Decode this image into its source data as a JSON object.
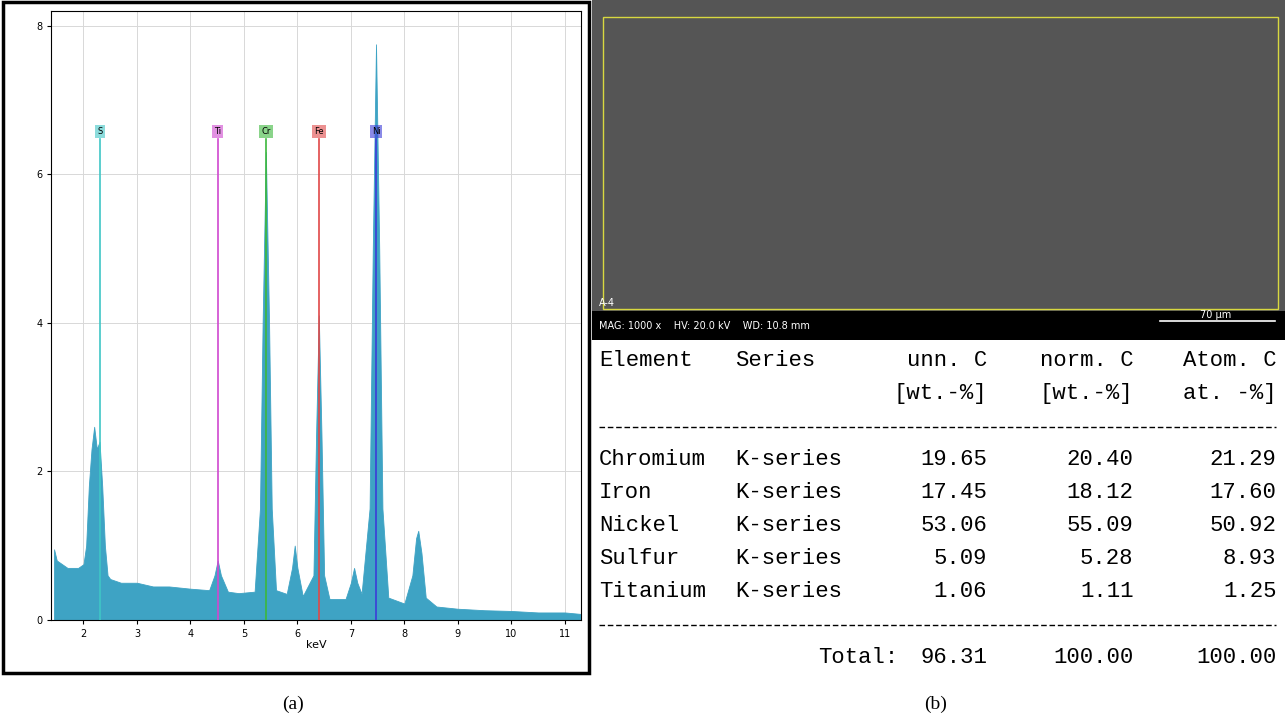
{
  "chart_data": {
    "type": "area",
    "x_label": "keV",
    "x": [
      1.45,
      1.5,
      1.6,
      1.7,
      1.8,
      1.9,
      2.0,
      2.05,
      2.1,
      2.15,
      2.2,
      2.25,
      2.3,
      2.35,
      2.4,
      2.45,
      2.5,
      2.7,
      3.0,
      3.3,
      3.6,
      4.0,
      4.35,
      4.45,
      4.51,
      4.57,
      4.7,
      4.9,
      5.2,
      5.3,
      5.35,
      5.41,
      5.47,
      5.52,
      5.6,
      5.8,
      5.9,
      5.95,
      6.0,
      6.1,
      6.3,
      6.35,
      6.4,
      6.45,
      6.5,
      6.6,
      6.9,
      7.0,
      7.06,
      7.12,
      7.2,
      7.35,
      7.41,
      7.47,
      7.53,
      7.59,
      7.7,
      8.0,
      8.15,
      8.22,
      8.26,
      8.32,
      8.4,
      8.6,
      9.0,
      9.5,
      10.0,
      10.5,
      11.0,
      11.3
    ],
    "values": [
      0.95,
      0.8,
      0.75,
      0.7,
      0.7,
      0.7,
      0.75,
      1.0,
      1.8,
      2.3,
      2.6,
      2.3,
      2.4,
      1.8,
      1.0,
      0.6,
      0.55,
      0.5,
      0.5,
      0.45,
      0.45,
      0.42,
      0.4,
      0.6,
      0.8,
      0.6,
      0.38,
      0.36,
      0.38,
      1.5,
      4.0,
      6.3,
      4.0,
      1.5,
      0.4,
      0.35,
      0.7,
      1.0,
      0.7,
      0.32,
      0.6,
      2.5,
      4.1,
      2.5,
      0.6,
      0.28,
      0.28,
      0.5,
      0.7,
      0.5,
      0.35,
      1.5,
      5.0,
      7.75,
      5.0,
      1.5,
      0.3,
      0.22,
      0.6,
      1.1,
      1.2,
      0.9,
      0.3,
      0.18,
      0.15,
      0.13,
      0.12,
      0.1,
      0.1,
      0.08
    ],
    "color": "#3ea3c4",
    "xlim": [
      1.4,
      11.3
    ],
    "xticks": [
      2,
      3,
      4,
      5,
      6,
      7,
      8,
      9,
      10,
      11
    ],
    "ylim": [
      0,
      8.2
    ],
    "yticks": [
      0,
      2,
      4,
      6,
      8
    ],
    "grid": true,
    "annotations": [
      {
        "label": "S",
        "x": 2.31,
        "color": "#3fc6c6"
      },
      {
        "label": "Ti",
        "x": 4.51,
        "color": "#d048d0"
      },
      {
        "label": "Cr",
        "x": 5.41,
        "color": "#3cb83c"
      },
      {
        "label": "Fe",
        "x": 6.4,
        "color": "#e04848"
      },
      {
        "label": "Ni",
        "x": 7.47,
        "color": "#3c3cd8"
      }
    ]
  },
  "panel_labels": [
    "(a)",
    "(b)"
  ],
  "sem_image": {
    "sample": "A-4",
    "info": "MAG: 1000 x    HV: 20.0 kV    WD: 10.8 mm",
    "scale_bar": "70 µm"
  },
  "table": {
    "header": [
      "Element",
      "Series",
      "unn. C",
      "norm. C",
      "Atom. C"
    ],
    "units": [
      "[wt.-%]",
      "[wt.-%]",
      "at. -%]"
    ],
    "rows": [
      [
        "Chromium",
        "K-series",
        "19.65",
        "20.40",
        "21.29"
      ],
      [
        "Iron",
        "K-series",
        "17.45",
        "18.12",
        "17.60"
      ],
      [
        "Nickel",
        "K-series",
        "53.06",
        "55.09",
        "50.92"
      ],
      [
        "Sulfur",
        "K-series",
        "5.09",
        "5.28",
        "8.93"
      ],
      [
        "Titanium",
        "K-series",
        "1.06",
        "1.11",
        "1.25"
      ]
    ],
    "total": {
      "label": "Total:",
      "values": [
        "96.31",
        "100.00",
        "100.00"
      ]
    }
  }
}
